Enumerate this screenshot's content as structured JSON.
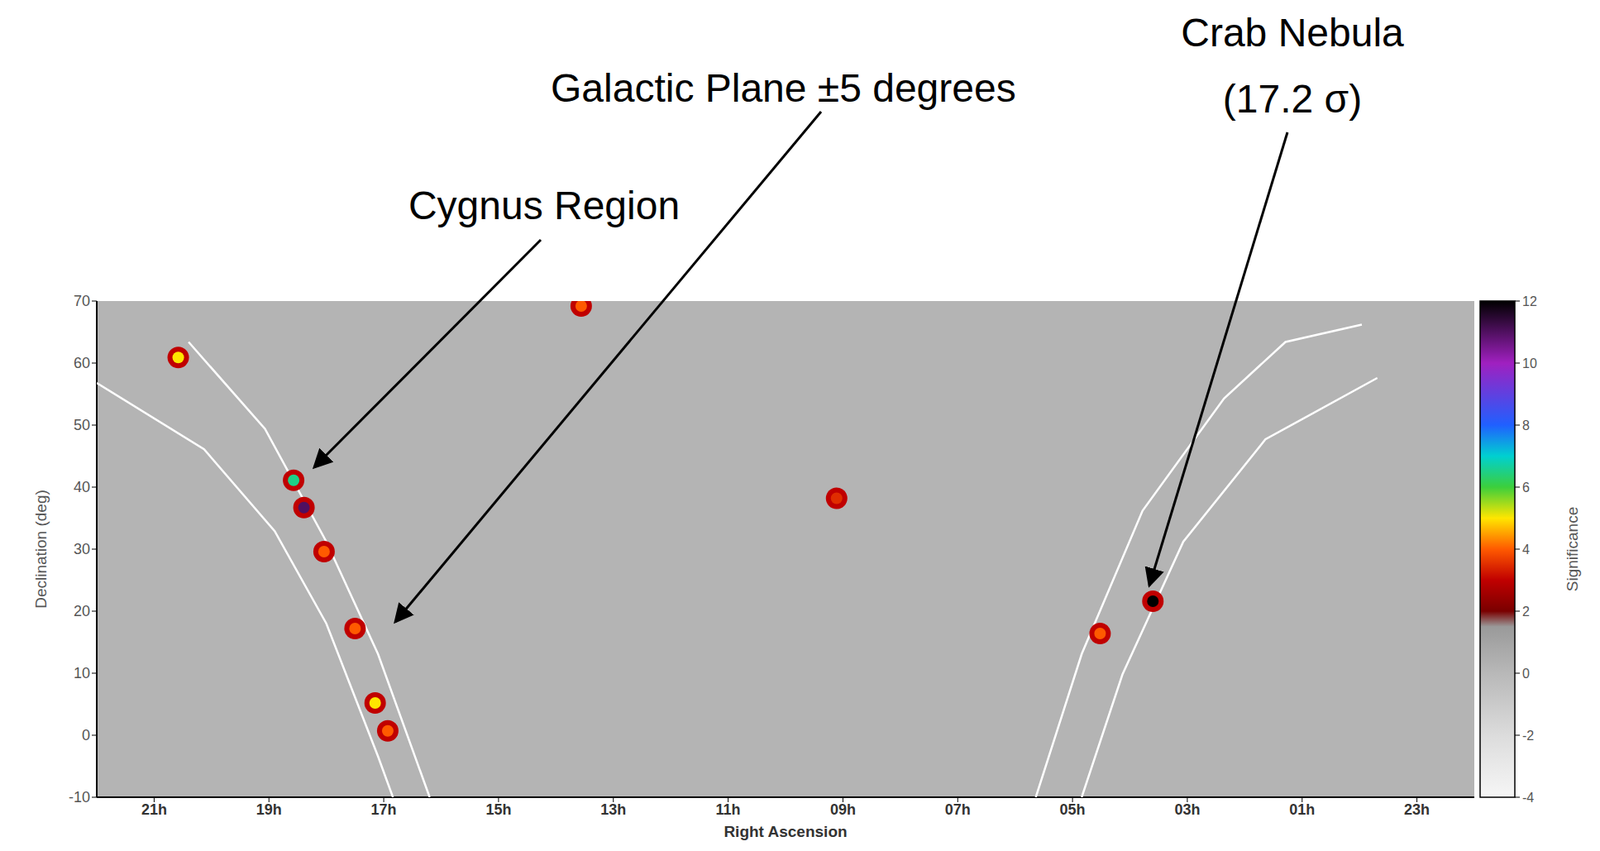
{
  "chart_data": {
    "type": "heatmap",
    "x_label": "Right Ascension",
    "y_label": "Declination (deg)",
    "xlim": [
      22,
      -2
    ],
    "xticks": [
      {
        "value": 21,
        "label": "21h"
      },
      {
        "value": 19,
        "label": "19h"
      },
      {
        "value": 17,
        "label": "17h"
      },
      {
        "value": 15,
        "label": "15h"
      },
      {
        "value": 13,
        "label": "13h"
      },
      {
        "value": 11,
        "label": "11h"
      },
      {
        "value": 9,
        "label": "09h"
      },
      {
        "value": 7,
        "label": "07h"
      },
      {
        "value": 5,
        "label": "05h"
      },
      {
        "value": 3,
        "label": "03h"
      },
      {
        "value": 1,
        "label": "01h"
      },
      {
        "value": -1,
        "label": "23h"
      }
    ],
    "ylim": [
      -10,
      70
    ],
    "yticks": [
      -10,
      0,
      10,
      20,
      30,
      40,
      50,
      60,
      70
    ],
    "grid": false,
    "hotspots": {
      "x": [
        20.58,
        18.57,
        18.39,
        18.04,
        17.5,
        17.15,
        16.93,
        3.6,
        4.52,
        13.56,
        9.11
      ],
      "y": [
        60.9,
        41.1,
        36.7,
        29.6,
        17.2,
        5.2,
        0.7,
        21.6,
        16.4,
        69.2,
        38.2
      ],
      "significance": [
        5,
        6.5,
        11,
        4,
        4,
        5,
        4,
        12,
        4,
        4,
        3.5
      ]
    },
    "galactic_plane_bounds": [
      {
        "color": "#ffffff",
        "x": [
          22,
          20.13,
          18.9,
          18.0,
          17.1,
          16.84
        ],
        "y": [
          56.8,
          46.1,
          32.9,
          18,
          -3.4,
          -10
        ]
      },
      {
        "color": "#ffffff",
        "x": [
          20.4,
          19.07,
          18.0,
          17.1,
          16.2
        ],
        "y": [
          63.4,
          49.4,
          31.2,
          13.1,
          -10
        ]
      },
      {
        "color": "#ffffff",
        "x": [
          5.64,
          4.84,
          3.78,
          2.36,
          1.29,
          -0.04
        ],
        "y": [
          -10,
          13.1,
          36.2,
          54.3,
          63.4,
          66.2
        ]
      },
      {
        "color": "#ffffff",
        "x": [
          4.84,
          4.13,
          3.07,
          1.64,
          -0.31
        ],
        "y": [
          -10,
          9.8,
          31.2,
          47.7,
          57.6
        ]
      }
    ],
    "colorbar": {
      "label": "Significance",
      "range": [
        -4,
        12
      ],
      "ticks": [
        -4,
        -2,
        0,
        2,
        4,
        6,
        8,
        10,
        12
      ]
    },
    "annotations": [
      {
        "text": "Cygnus Region"
      },
      {
        "text": "Galactic Plane ±5 degrees"
      },
      {
        "lines": [
          "Crab Nebula",
          "(17.2 σ)"
        ]
      }
    ]
  }
}
